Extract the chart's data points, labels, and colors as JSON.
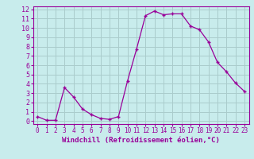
{
  "x": [
    0,
    1,
    2,
    3,
    4,
    5,
    6,
    7,
    8,
    9,
    10,
    11,
    12,
    13,
    14,
    15,
    16,
    17,
    18,
    19,
    20,
    21,
    22,
    23
  ],
  "y": [
    0.5,
    0.1,
    0.1,
    3.6,
    2.6,
    1.3,
    0.7,
    0.3,
    0.2,
    0.5,
    4.3,
    7.7,
    11.3,
    11.8,
    11.4,
    11.5,
    11.5,
    10.2,
    9.8,
    8.5,
    6.3,
    5.3,
    4.1,
    3.2
  ],
  "line_color": "#990099",
  "marker": "+",
  "bg_color": "#c8ecec",
  "grid_color": "#aacccc",
  "xlabel": "Windchill (Refroidissement éolien,°C)",
  "xlabel_color": "#990099",
  "tick_color": "#990099",
  "spine_color": "#990099",
  "ylim": [
    0,
    12
  ],
  "xlim": [
    0,
    23
  ],
  "yticks": [
    0,
    1,
    2,
    3,
    4,
    5,
    6,
    7,
    8,
    9,
    10,
    11,
    12
  ],
  "xticks": [
    0,
    1,
    2,
    3,
    4,
    5,
    6,
    7,
    8,
    9,
    10,
    11,
    12,
    13,
    14,
    15,
    16,
    17,
    18,
    19,
    20,
    21,
    22,
    23
  ],
  "figsize": [
    3.2,
    2.0
  ],
  "dpi": 100
}
